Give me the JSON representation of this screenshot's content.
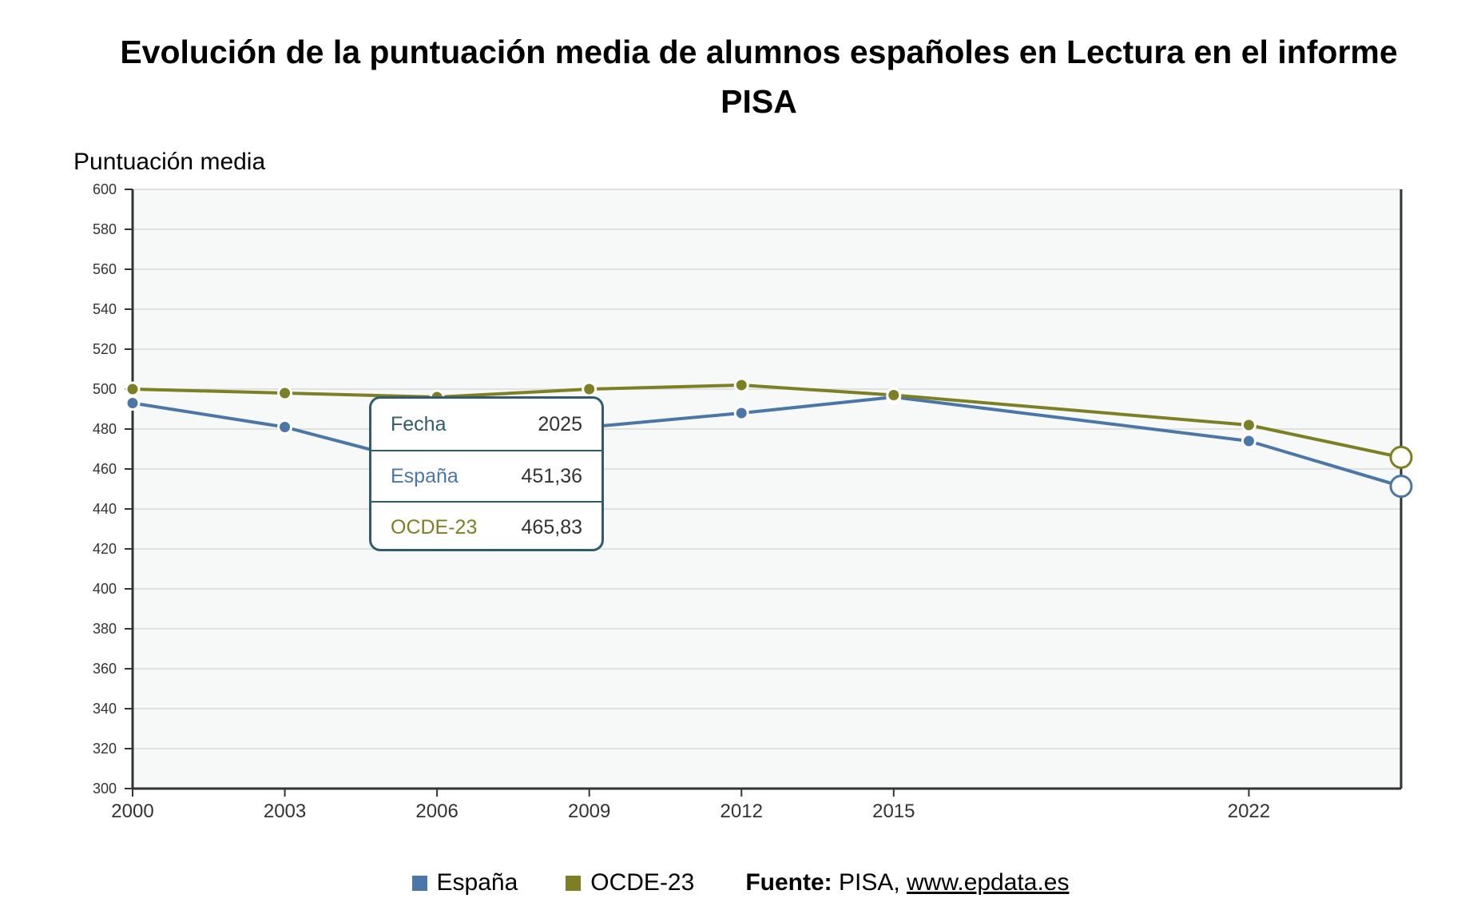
{
  "chart_data": {
    "type": "line",
    "title": "Evolución de la puntuación media de alumnos españoles en Lectura en el informe PISA",
    "ylabel": "Puntuación media",
    "xlabel": "",
    "ylim": [
      300,
      600
    ],
    "yticks": [
      300,
      320,
      340,
      360,
      380,
      400,
      420,
      440,
      460,
      480,
      500,
      520,
      540,
      560,
      580,
      600
    ],
    "xlim": [
      2000,
      2025
    ],
    "xticks": [
      2000,
      2003,
      2006,
      2009,
      2012,
      2015,
      2022
    ],
    "grid": true,
    "legend_position": "bottom",
    "x": [
      2000,
      2003,
      2006,
      2009,
      2012,
      2015,
      2022,
      2025
    ],
    "series": [
      {
        "name": "España",
        "color": "#4a77a8",
        "values": [
          493,
          481,
          461,
          481,
          488,
          496,
          474,
          451.36
        ]
      },
      {
        "name": "OCDE-23",
        "color": "#7c7f24",
        "values": [
          500,
          498,
          496,
          500,
          502,
          497,
          482,
          465.83
        ]
      }
    ],
    "tooltip": {
      "rows": [
        {
          "label": "Fecha",
          "value": "2025",
          "color": "#2f5c6e"
        },
        {
          "label": "España",
          "value": "451,36",
          "color": "#4a77a8"
        },
        {
          "label": "OCDE-23",
          "value": "465,83",
          "color": "#7c7f24"
        }
      ]
    }
  },
  "source": {
    "label": "Fuente:",
    "text": " PISA, ",
    "link": "www.epdata.es"
  }
}
